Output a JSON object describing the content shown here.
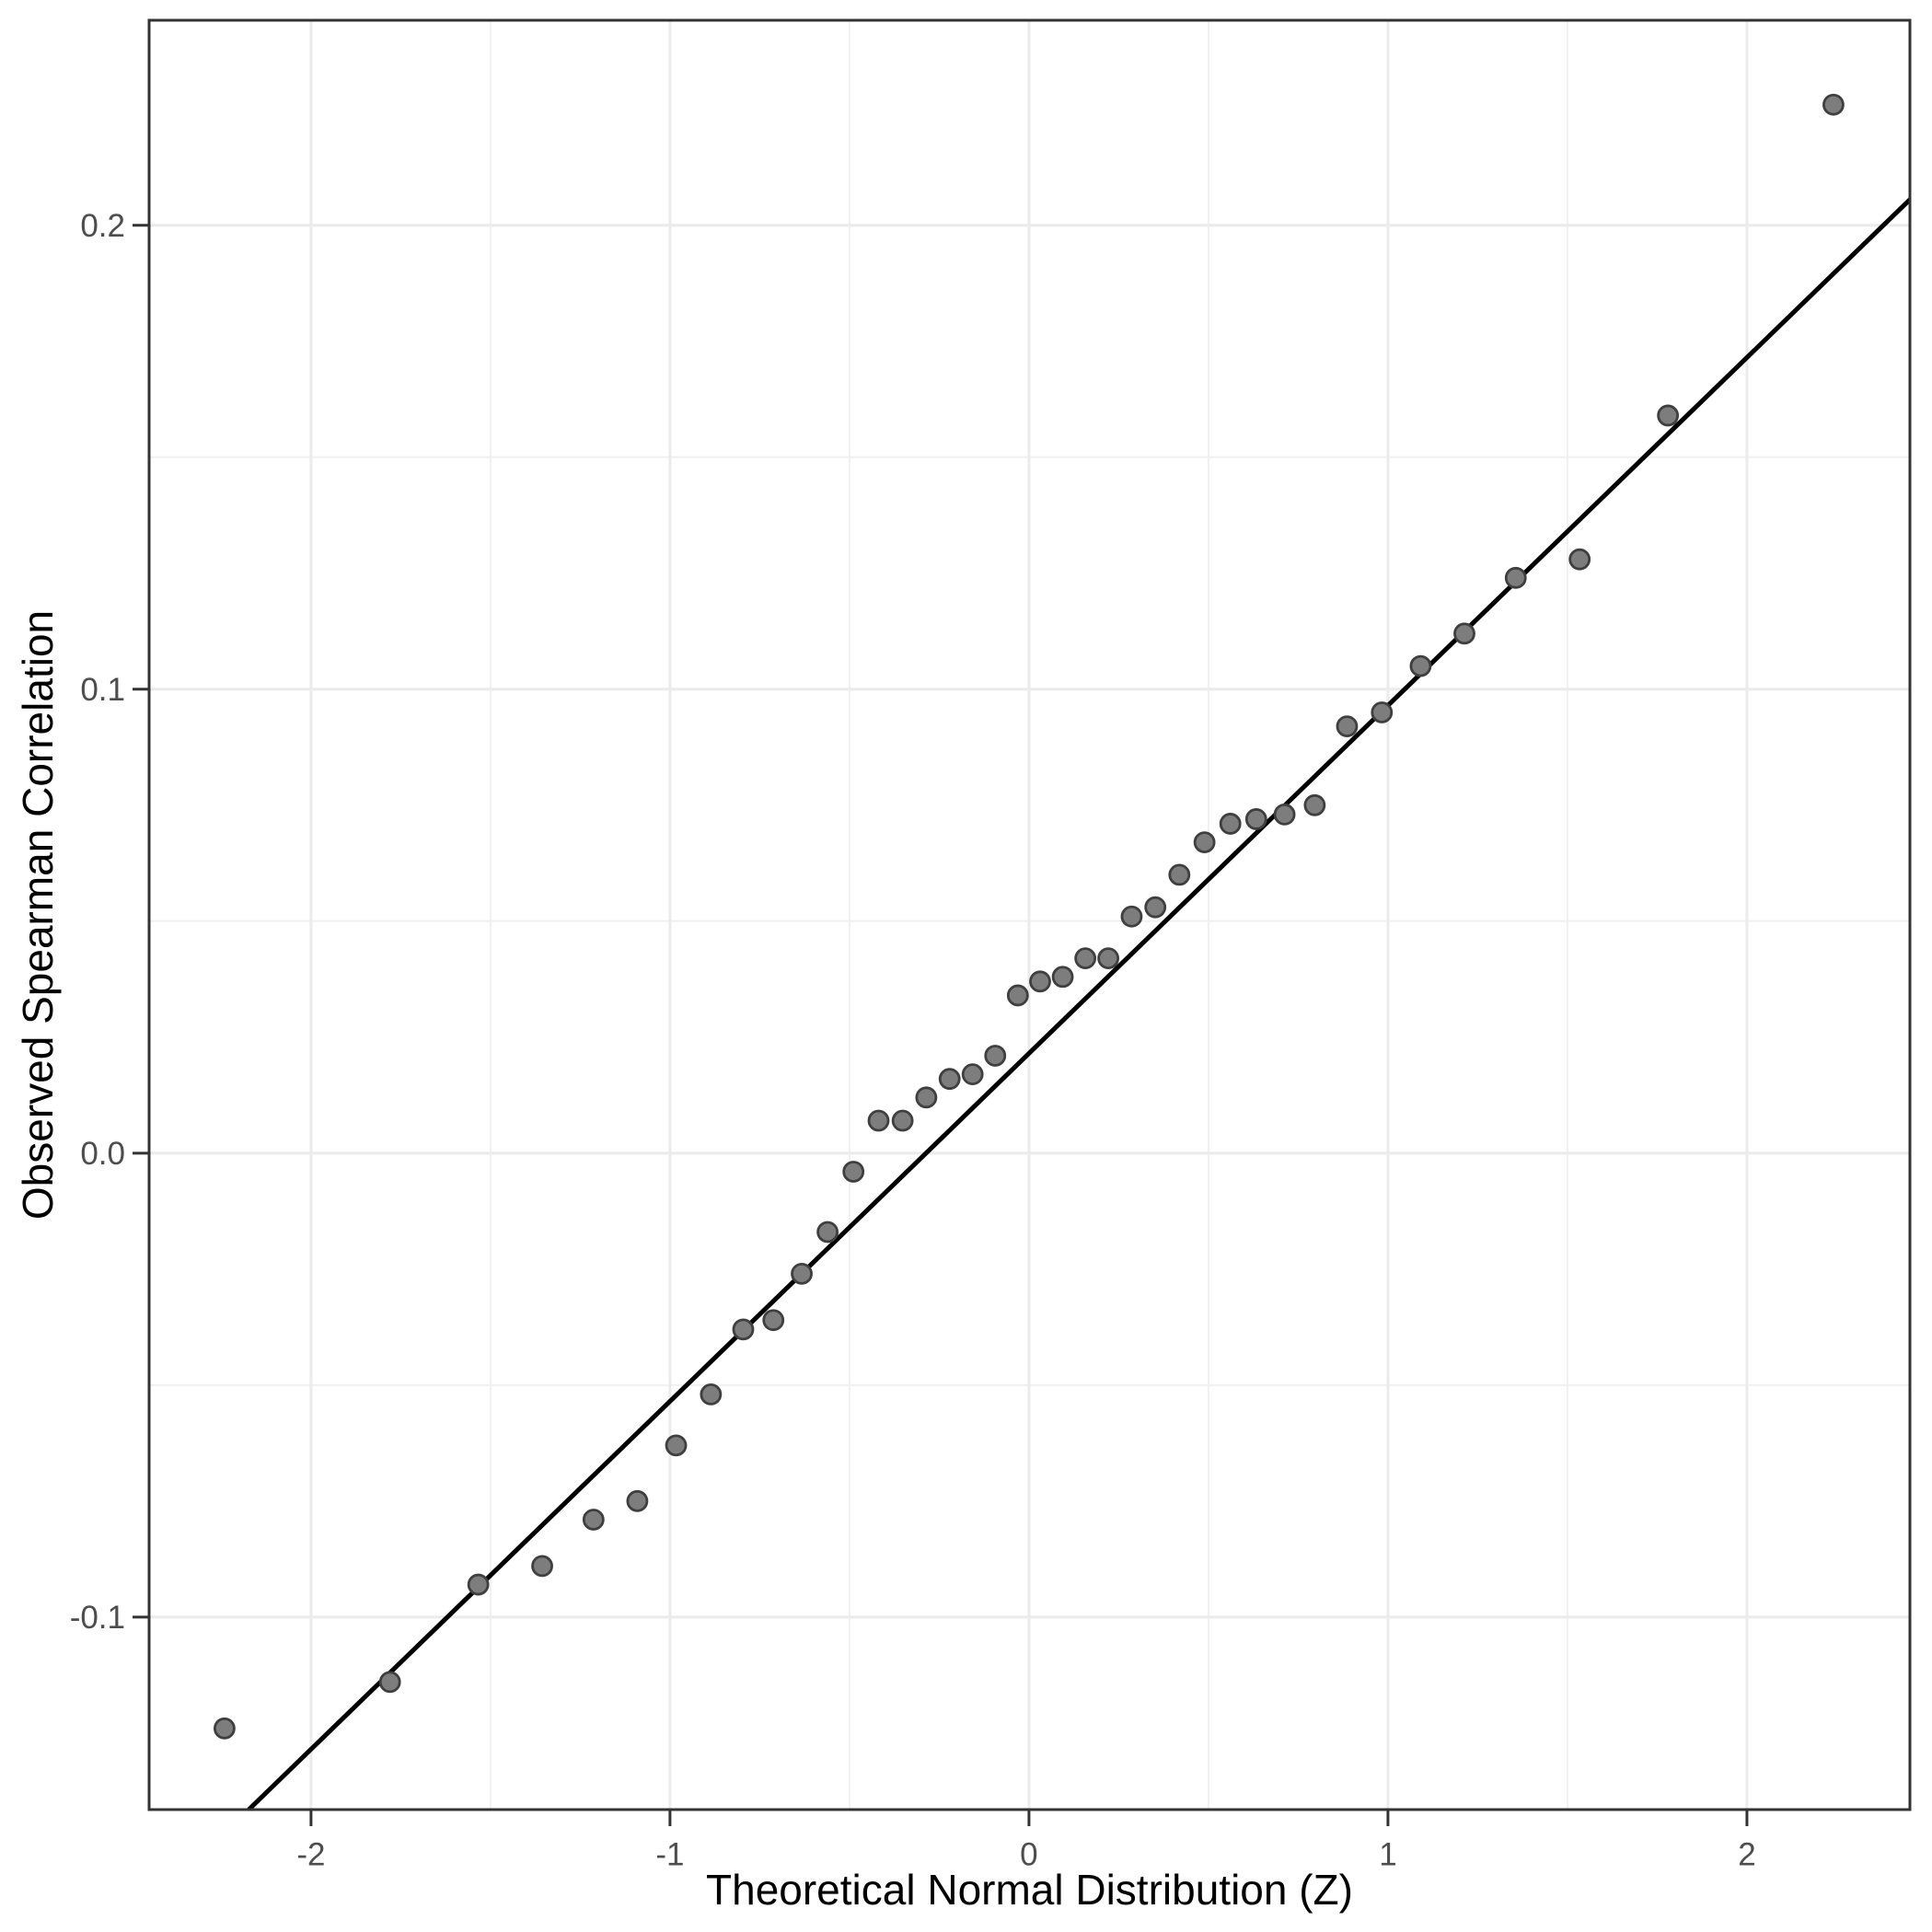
{
  "chart_data": {
    "type": "scatter",
    "title": "",
    "xlabel": "Theoretical Normal Distribution (Z)",
    "ylabel": "Observed Spearman Correlation",
    "xlim": [
      -2.451,
      2.454
    ],
    "ylim": [
      -0.1415,
      0.2442
    ],
    "grid": true,
    "legend": "none",
    "x_ticks": [
      {
        "value": -2,
        "label": "-2"
      },
      {
        "value": -1,
        "label": "-1"
      },
      {
        "value": 0,
        "label": "0"
      },
      {
        "value": 1,
        "label": "1"
      },
      {
        "value": 2,
        "label": "2"
      }
    ],
    "y_ticks": [
      {
        "value": -0.1,
        "label": "-0.1"
      },
      {
        "value": 0.0,
        "label": "0.0"
      },
      {
        "value": 0.1,
        "label": "0.1"
      },
      {
        "value": 0.2,
        "label": "0.2"
      }
    ],
    "x_minor_gridlines": [
      -1.5,
      -0.5,
      0.5,
      1.5
    ],
    "y_minor_gridlines": [
      -0.05,
      0.05,
      0.15
    ],
    "points": [
      [
        -2.241,
        -0.124
      ],
      [
        -1.78,
        -0.114
      ],
      [
        -1.534,
        -0.093
      ],
      [
        -1.356,
        -0.089
      ],
      [
        -1.213,
        -0.079
      ],
      [
        -1.091,
        -0.075
      ],
      [
        -0.983,
        -0.063
      ],
      [
        -0.886,
        -0.052
      ],
      [
        -0.796,
        -0.038
      ],
      [
        -0.712,
        -0.036
      ],
      [
        -0.633,
        -0.026
      ],
      [
        -0.561,
        -0.017
      ],
      [
        -0.489,
        -0.004
      ],
      [
        -0.419,
        0.007
      ],
      [
        -0.352,
        0.007
      ],
      [
        -0.286,
        0.012
      ],
      [
        -0.221,
        0.016
      ],
      [
        -0.157,
        0.017
      ],
      [
        -0.094,
        0.021
      ],
      [
        -0.031,
        0.034
      ],
      [
        0.031,
        0.037
      ],
      [
        0.094,
        0.038
      ],
      [
        0.157,
        0.042
      ],
      [
        0.221,
        0.042
      ],
      [
        0.286,
        0.051
      ],
      [
        0.352,
        0.053
      ],
      [
        0.419,
        0.06
      ],
      [
        0.489,
        0.067
      ],
      [
        0.561,
        0.071
      ],
      [
        0.633,
        0.072
      ],
      [
        0.712,
        0.073
      ],
      [
        0.796,
        0.075
      ],
      [
        0.886,
        0.092
      ],
      [
        0.983,
        0.095
      ],
      [
        1.091,
        0.105
      ],
      [
        1.213,
        0.112
      ],
      [
        1.356,
        0.124
      ],
      [
        1.534,
        0.128
      ],
      [
        1.78,
        0.159
      ],
      [
        2.241,
        0.226
      ]
    ],
    "reference_line": {
      "slope": 0.075,
      "intercept": 0.0215
    }
  },
  "style": {
    "background": "#ffffff",
    "panel_background": "#ffffff",
    "panel_border_color": "#333333",
    "grid_major_color": "#ebebeb",
    "grid_minor_color": "#f0f0f0",
    "tick_mark_color": "#333333",
    "tick_label_color": "#4d4d4d",
    "axis_title_color": "#000000",
    "point_fill": "#7d7d7d",
    "point_stroke": "#3f3f3f",
    "reference_line_color": "#000000"
  }
}
